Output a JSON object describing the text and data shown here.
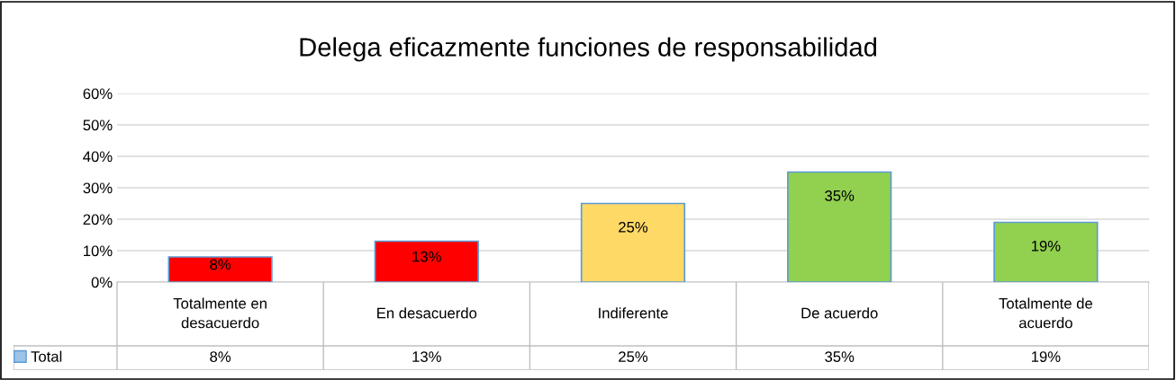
{
  "chart_data": {
    "type": "bar",
    "title": "Delega eficazmente funciones de responsabilidad",
    "categories": [
      "Totalmente en\ndesacuerdo",
      "En desacuerdo",
      "Indiferente",
      "De acuerdo",
      "Totalmente de\nacuerdo"
    ],
    "series": [
      {
        "name": "Total",
        "color": "#9dc3e6",
        "colors": [
          "#ff0000",
          "#ff0000",
          "#ffd966",
          "#92d050",
          "#92d050"
        ],
        "values": [
          8,
          13,
          25,
          35,
          19
        ],
        "value_labels": [
          "8%",
          "13%",
          "25%",
          "35%",
          "19%"
        ]
      }
    ],
    "ylim": [
      0,
      60
    ],
    "yticks": [
      {
        "value": 0,
        "label": "0%"
      },
      {
        "value": 10,
        "label": "10%"
      },
      {
        "value": 20,
        "label": "20%"
      },
      {
        "value": 30,
        "label": "30%"
      },
      {
        "value": 40,
        "label": "40%"
      },
      {
        "value": 50,
        "label": "50%"
      },
      {
        "value": 60,
        "label": "60%"
      }
    ],
    "grid": "y",
    "legend": "bottom left"
  }
}
